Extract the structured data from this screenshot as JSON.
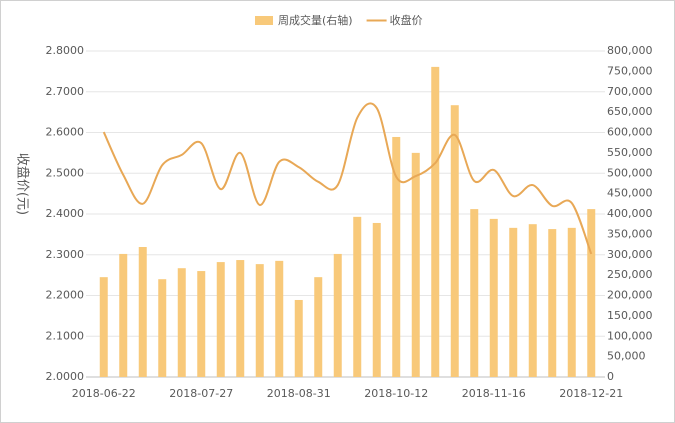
{
  "chart_data": {
    "type": "bar-line",
    "categories": [
      "2018-06-22",
      null,
      null,
      null,
      null,
      "2018-07-27",
      null,
      null,
      null,
      null,
      "2018-08-31",
      null,
      null,
      null,
      null,
      "2018-10-12",
      null,
      null,
      null,
      null,
      "2018-11-16",
      null,
      null,
      null,
      null,
      "2018-12-21"
    ],
    "ylabel": "收盘价(元)",
    "ylim": [
      2.0,
      2.8
    ],
    "yticks": [
      {
        "value": 2.0,
        "label": "2.0000"
      },
      {
        "value": 2.1,
        "label": "2.1000"
      },
      {
        "value": 2.2,
        "label": "2.2000"
      },
      {
        "value": 2.3,
        "label": "2.3000"
      },
      {
        "value": 2.4,
        "label": "2.4000"
      },
      {
        "value": 2.5,
        "label": "2.5000"
      },
      {
        "value": 2.6,
        "label": "2.6000"
      },
      {
        "value": 2.7,
        "label": "2.7000"
      },
      {
        "value": 2.8,
        "label": "2.8000"
      }
    ],
    "y2lim": [
      0,
      800000
    ],
    "y2ticks": [
      0,
      {
        "value": 50000,
        "label": "50,000"
      },
      {
        "value": 100000,
        "label": "100,000"
      },
      {
        "value": 150000,
        "label": "150,000"
      },
      {
        "value": 200000,
        "label": "200,000"
      },
      {
        "value": 250000,
        "label": "250,000"
      },
      {
        "value": 300000,
        "label": "300,000"
      },
      {
        "value": 350000,
        "label": "350,000"
      },
      {
        "value": 400000,
        "label": "400,000"
      },
      {
        "value": 450000,
        "label": "450,000"
      },
      {
        "value": 500000,
        "label": "500,000"
      },
      {
        "value": 550000,
        "label": "550,000"
      },
      {
        "value": 600000,
        "label": "600,000"
      },
      {
        "value": 650000,
        "label": "650,000"
      },
      {
        "value": 700000,
        "label": "700,000"
      },
      {
        "value": 750000,
        "label": "750,000"
      },
      {
        "value": 800000,
        "label": "800,000"
      }
    ],
    "grid": true,
    "legend": "top",
    "series": [
      {
        "name": "周成交量(右轴)",
        "type": "bar",
        "axis": "y2",
        "color": "#f8c97a",
        "values": [
          245000,
          302000,
          319000,
          240000,
          267000,
          260000,
          282000,
          287000,
          277000,
          285000,
          189000,
          245000,
          302000,
          393000,
          378000,
          589000,
          550000,
          761000,
          667000,
          412000,
          388000,
          366000,
          375000,
          363000,
          366000,
          412000
        ]
      },
      {
        "name": "收盘价",
        "type": "line",
        "axis": "y",
        "color": "#e8a856",
        "values": [
          2.601,
          2.496,
          2.425,
          2.52,
          2.545,
          2.574,
          2.461,
          2.55,
          2.422,
          2.528,
          2.515,
          2.479,
          2.471,
          2.636,
          2.66,
          2.491,
          2.493,
          2.525,
          2.594,
          2.481,
          2.508,
          2.444,
          2.471,
          2.42,
          2.427,
          2.302
        ]
      }
    ]
  }
}
